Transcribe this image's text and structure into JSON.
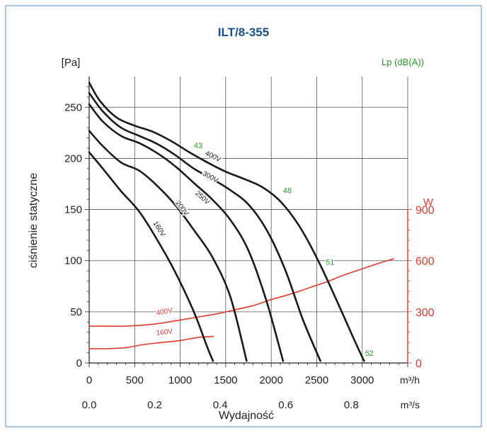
{
  "chart_data": {
    "type": "line",
    "title": "ILT/8-355",
    "ylabel": "ciśnienie statyczne",
    "ylabel_unit": "[Pa]",
    "xlabel": "Wydajność",
    "x_unit_primary": "m³/h",
    "x_unit_secondary": "m³/s",
    "right_unit": "W",
    "noise_unit": "Lp (dB(A))",
    "xlim": [
      0,
      3500
    ],
    "ylim": [
      0,
      280
    ],
    "grid": true,
    "x_ticks": [
      0,
      500,
      1000,
      1500,
      2000,
      2500,
      3000
    ],
    "x_ticks_labels": [
      "0",
      "500",
      "1000",
      "1500",
      "2000",
      "2500",
      "3000"
    ],
    "x2_ticks": [
      0,
      720,
      1440,
      2160,
      2880
    ],
    "x2_ticks_labels": [
      "0.0",
      "0.2",
      "0.4",
      "0.6",
      "0.8"
    ],
    "y_ticks": [
      0,
      50,
      100,
      150,
      200,
      250
    ],
    "y_ticks_labels": [
      "0",
      "50",
      "100",
      "150",
      "200",
      "250"
    ],
    "power_ticks": [
      0,
      50,
      100,
      150
    ],
    "power_ticks_labels": [
      "0",
      "300",
      "600",
      "900"
    ],
    "series": [
      {
        "name": "400V",
        "label_at": [
          1350,
          200
        ],
        "x": [
          0,
          120,
          300,
          500,
          700,
          900,
          1100,
          1300,
          1500,
          1700,
          1900,
          2100,
          2300,
          2500,
          2700,
          2900,
          3020
        ],
        "y": [
          274,
          256,
          240,
          232,
          226,
          217,
          206,
          196,
          187,
          180,
          172,
          158,
          135,
          103,
          65,
          25,
          2
        ]
      },
      {
        "name": "300V",
        "label_at": [
          1320,
          180
        ],
        "x": [
          0,
          150,
          350,
          550,
          750,
          950,
          1150,
          1350,
          1550,
          1750,
          1950,
          2150,
          2350,
          2540
        ],
        "y": [
          264,
          246,
          230,
          222,
          214,
          203,
          190,
          180,
          169,
          155,
          130,
          92,
          42,
          2
        ]
      },
      {
        "name": "250V",
        "label_at": [
          1230,
          160
        ],
        "x": [
          0,
          150,
          350,
          550,
          750,
          950,
          1150,
          1350,
          1550,
          1750,
          1950,
          2130
        ],
        "y": [
          253,
          236,
          222,
          215,
          205,
          192,
          176,
          160,
          140,
          110,
          60,
          2
        ]
      },
      {
        "name": "200V",
        "label_at": [
          1000,
          150
        ],
        "x": [
          0,
          150,
          350,
          550,
          750,
          950,
          1150,
          1350,
          1550,
          1730
        ],
        "y": [
          227,
          212,
          196,
          188,
          173,
          154,
          130,
          104,
          65,
          2
        ]
      },
      {
        "name": "160V",
        "label_at": [
          750,
          130
        ],
        "x": [
          0,
          150,
          350,
          550,
          750,
          950,
          1150,
          1300,
          1360
        ],
        "y": [
          206,
          190,
          168,
          148,
          120,
          88,
          50,
          15,
          2
        ]
      }
    ],
    "power_series": [
      {
        "name": "400V",
        "label_at": [
          830,
          48
        ],
        "x": [
          0,
          200,
          400,
          600,
          800,
          1000,
          1200,
          1400,
          1600,
          1800,
          2000,
          2200,
          2400,
          2600,
          2800,
          3000,
          3200,
          3350
        ],
        "y": [
          36,
          36,
          36,
          37,
          39,
          42,
          45,
          48,
          52,
          56,
          62,
          67,
          73,
          79,
          86,
          92,
          98,
          102
        ]
      },
      {
        "name": "160V",
        "label_at": [
          830,
          28
        ],
        "x": [
          0,
          200,
          400,
          600,
          800,
          1000,
          1200,
          1370
        ],
        "y": [
          14,
          14,
          15,
          18,
          20,
          22,
          25,
          26
        ]
      }
    ],
    "noise_labels": [
      {
        "text": "43",
        "x": 1150,
        "y": 210
      },
      {
        "text": "48",
        "x": 2130,
        "y": 166
      },
      {
        "text": "51",
        "x": 2600,
        "y": 96
      },
      {
        "text": "52",
        "x": 3030,
        "y": 7
      }
    ],
    "colors": {
      "frame": "#6d9fd1",
      "title": "#1a4f8a",
      "curve": "#1a1a1a",
      "power": "#e03a31",
      "noise": "#2a9a2a",
      "grid": "#555555"
    }
  }
}
